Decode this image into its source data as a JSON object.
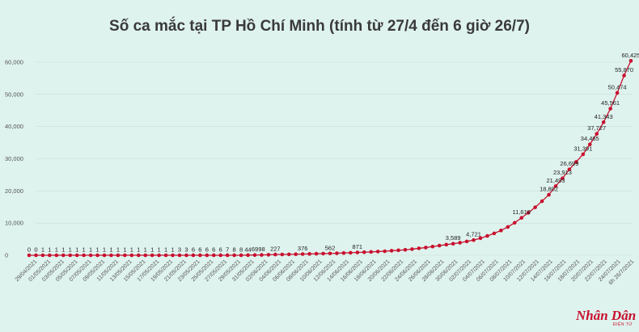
{
  "chart_data": {
    "type": "line",
    "title": "Số ca mắc tại TP Hồ Chí Minh (tính từ 27/4 đến 6 giờ 26/7)",
    "series_color": "#c8102e",
    "ylim": [
      0,
      65000
    ],
    "yticks": [
      0,
      10000,
      20000,
      30000,
      40000,
      50000,
      60000
    ],
    "ytick_labels": [
      "0",
      "10,000",
      "20,000",
      "30,000",
      "40,000",
      "50,000",
      "60,000"
    ],
    "grid": true,
    "xtick_labels": [
      "29/04/2021",
      "01/05/2021",
      "03/05/2021",
      "05/05/2021",
      "07/05/2021",
      "09/05/2021",
      "11/05/2021",
      "13/05/2021",
      "15/05/2021",
      "17/05/2021",
      "19/05/2021",
      "21/05/2021",
      "23/05/2021",
      "25/05/2021",
      "27/05/2021",
      "29/05/2021",
      "31/05/2021",
      "02/06/2021",
      "04/06/2021",
      "06/06/2021",
      "08/06/2021",
      "10/06/2021",
      "12/06/2021",
      "14/06/2021",
      "16/06/2021",
      "18/06/2021",
      "20/06/2021",
      "22/06/2021",
      "24/06/2021",
      "26/06/2021",
      "28/06/2021",
      "30/06/2021",
      "02/07/2021",
      "04/07/2021",
      "06/07/2021",
      "08/07/2021",
      "10/07/2021",
      "12/07/2021",
      "14/07/2021",
      "16/07/2021",
      "18/07/2021",
      "20/07/2021",
      "22/07/2021",
      "24/07/2021",
      "6h 26/7/2021"
    ],
    "values": [
      0,
      0,
      1,
      1,
      1,
      1,
      1,
      1,
      1,
      1,
      1,
      1,
      1,
      1,
      1,
      1,
      1,
      1,
      1,
      1,
      1,
      1,
      3,
      3,
      6,
      6,
      6,
      6,
      6,
      7,
      8,
      8,
      44,
      69,
      98,
      150,
      227,
      250,
      280,
      320,
      376,
      420,
      480,
      520,
      562,
      620,
      700,
      780,
      871,
      950,
      1050,
      1150,
      1250,
      1400,
      1550,
      1700,
      1900,
      2150,
      2400,
      2700,
      3000,
      3300,
      3589,
      3900,
      4300,
      4721,
      5300,
      6000,
      6800,
      7700,
      8800,
      10100,
      11619,
      13200,
      14900,
      16800,
      18802,
      21493,
      23913,
      26699,
      29000,
      31391,
      34465,
      37727,
      41343,
      45561,
      50474,
      55870,
      60425
    ],
    "data_labels": [
      {
        "index": 0,
        "text": "0"
      },
      {
        "index": 1,
        "text": "0"
      },
      {
        "index": 2,
        "text": "1"
      },
      {
        "index": 3,
        "text": "1"
      },
      {
        "index": 4,
        "text": "1"
      },
      {
        "index": 5,
        "text": "1"
      },
      {
        "index": 6,
        "text": "1"
      },
      {
        "index": 7,
        "text": "1"
      },
      {
        "index": 8,
        "text": "1"
      },
      {
        "index": 9,
        "text": "1"
      },
      {
        "index": 10,
        "text": "1"
      },
      {
        "index": 11,
        "text": "1"
      },
      {
        "index": 12,
        "text": "1"
      },
      {
        "index": 13,
        "text": "1"
      },
      {
        "index": 14,
        "text": "1"
      },
      {
        "index": 15,
        "text": "1"
      },
      {
        "index": 16,
        "text": "1"
      },
      {
        "index": 17,
        "text": "1"
      },
      {
        "index": 18,
        "text": "1"
      },
      {
        "index": 19,
        "text": "1"
      },
      {
        "index": 20,
        "text": "1"
      },
      {
        "index": 21,
        "text": "1"
      },
      {
        "index": 22,
        "text": "3"
      },
      {
        "index": 23,
        "text": "3"
      },
      {
        "index": 24,
        "text": "6"
      },
      {
        "index": 25,
        "text": "6"
      },
      {
        "index": 26,
        "text": "6"
      },
      {
        "index": 27,
        "text": "6"
      },
      {
        "index": 28,
        "text": "6"
      },
      {
        "index": 29,
        "text": "7"
      },
      {
        "index": 30,
        "text": "8"
      },
      {
        "index": 31,
        "text": "8"
      },
      {
        "index": 32,
        "text": "44"
      },
      {
        "index": 33,
        "text": "69"
      },
      {
        "index": 34,
        "text": "98"
      },
      {
        "index": 36,
        "text": "227"
      },
      {
        "index": 40,
        "text": "376"
      },
      {
        "index": 44,
        "text": "562"
      },
      {
        "index": 48,
        "text": "871"
      },
      {
        "index": 62,
        "text": "3,589"
      },
      {
        "index": 65,
        "text": "4,721"
      },
      {
        "index": 72,
        "text": "11,619"
      },
      {
        "index": 76,
        "text": "18,802"
      },
      {
        "index": 77,
        "text": "21,493"
      },
      {
        "index": 78,
        "text": "23,913"
      },
      {
        "index": 79,
        "text": "26,699"
      },
      {
        "index": 81,
        "text": "31,391"
      },
      {
        "index": 82,
        "text": "34,465"
      },
      {
        "index": 83,
        "text": "37,727"
      },
      {
        "index": 84,
        "text": "41,343"
      },
      {
        "index": 85,
        "text": "45,561"
      },
      {
        "index": 86,
        "text": "50,474"
      },
      {
        "index": 87,
        "text": "55,870"
      },
      {
        "index": 88,
        "text": "60,425"
      }
    ]
  },
  "logo": {
    "text": "Nhân Dân",
    "sub": "ĐIỆN TỬ"
  }
}
